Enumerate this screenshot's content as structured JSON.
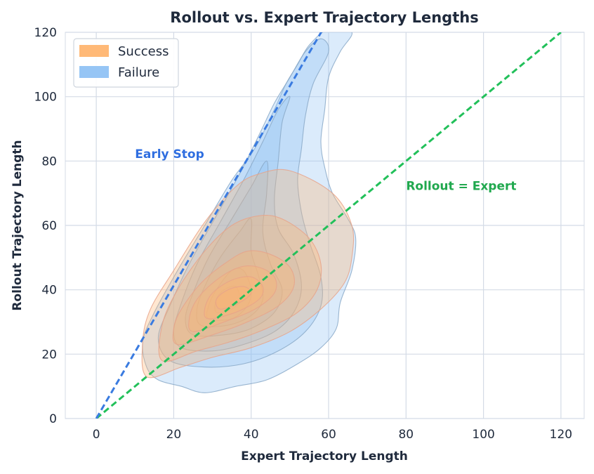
{
  "chart_data": {
    "type": "kde-contour",
    "title": "Rollout vs. Expert Trajectory Lengths",
    "xlabel": "Expert Trajectory Length",
    "ylabel": "Rollout Trajectory Length",
    "xlim": [
      -8,
      126
    ],
    "ylim": [
      0,
      120
    ],
    "xticks": [
      0,
      20,
      40,
      60,
      80,
      100,
      120
    ],
    "yticks": [
      0,
      20,
      40,
      60,
      80,
      100,
      120
    ],
    "grid": true,
    "legend_position": "top-left",
    "series": [
      {
        "name": "Success",
        "color": "#ffb570",
        "line_color": "#e8a38a",
        "center": [
          36,
          36
        ],
        "contours": [
          [
            [
              13,
              13
            ],
            [
              22,
              16
            ],
            [
              30,
              19
            ],
            [
              40,
              22
            ],
            [
              50,
              27
            ],
            [
              58,
              34
            ],
            [
              64,
              42
            ],
            [
              66,
              50
            ],
            [
              66,
              60
            ],
            [
              61,
              70
            ],
            [
              50,
              77
            ],
            [
              42,
              76
            ],
            [
              36,
              72
            ],
            [
              28,
              61
            ],
            [
              20,
              46
            ],
            [
              14,
              34
            ],
            [
              12,
              24
            ]
          ],
          [
            [
              17,
              18
            ],
            [
              26,
              21
            ],
            [
              35,
              24
            ],
            [
              44,
              28
            ],
            [
              52,
              33
            ],
            [
              57,
              40
            ],
            [
              58,
              48
            ],
            [
              55,
              56
            ],
            [
              48,
              62
            ],
            [
              42,
              63
            ],
            [
              35,
              60
            ],
            [
              28,
              52
            ],
            [
              21,
              40
            ],
            [
              17,
              29
            ]
          ],
          [
            [
              21,
              23
            ],
            [
              30,
              26
            ],
            [
              39,
              30
            ],
            [
              47,
              35
            ],
            [
              51,
              41
            ],
            [
              50,
              47
            ],
            [
              45,
              51
            ],
            [
              39,
              52
            ],
            [
              33,
              48
            ],
            [
              27,
              42
            ],
            [
              22,
              34
            ],
            [
              20,
              28
            ]
          ],
          [
            [
              25,
              27
            ],
            [
              33,
              30
            ],
            [
              41,
              34
            ],
            [
              46,
              39
            ],
            [
              46,
              44
            ],
            [
              42,
              47
            ],
            [
              37,
              47
            ],
            [
              31,
              43
            ],
            [
              26,
              37
            ],
            [
              24,
              31
            ]
          ],
          [
            [
              29,
              31
            ],
            [
              36,
              33
            ],
            [
              42,
              37
            ],
            [
              43,
              41
            ],
            [
              40,
              44
            ],
            [
              35,
              43
            ],
            [
              30,
              39
            ],
            [
              28,
              34
            ]
          ],
          [
            [
              32,
              34
            ],
            [
              37,
              36
            ],
            [
              40,
              39
            ],
            [
              38,
              41
            ],
            [
              34,
              40
            ],
            [
              31,
              37
            ]
          ]
        ]
      },
      {
        "name": "Failure",
        "color": "#90c2f4",
        "line_color": "#8aa9c8",
        "center": [
          35,
          37
        ],
        "contours": [
          [
            [
              16,
              12
            ],
            [
              22,
              10
            ],
            [
              28,
              8
            ],
            [
              36,
              10
            ],
            [
              44,
              12
            ],
            [
              52,
              17
            ],
            [
              58,
              22
            ],
            [
              62,
              28
            ],
            [
              63,
              36
            ],
            [
              66,
              46
            ],
            [
              67,
              56
            ],
            [
              65,
              62
            ],
            [
              61,
              70
            ],
            [
              59,
              78
            ],
            [
              58,
              86
            ],
            [
              59,
              96
            ],
            [
              60,
              106
            ],
            [
              63,
              114
            ],
            [
              66,
              120
            ],
            [
              60,
              121
            ],
            [
              55,
              116
            ],
            [
              52,
              110
            ],
            [
              49,
              104
            ],
            [
              46,
              96
            ],
            [
              41,
              84
            ],
            [
              35,
              74
            ],
            [
              28,
              60
            ],
            [
              21,
              46
            ],
            [
              15,
              33
            ],
            [
              12,
              24
            ],
            [
              13,
              16
            ]
          ],
          [
            [
              19,
              18
            ],
            [
              28,
              16
            ],
            [
              38,
              17
            ],
            [
              47,
              21
            ],
            [
              54,
              27
            ],
            [
              58,
              35
            ],
            [
              58,
              44
            ],
            [
              55,
              55
            ],
            [
              53,
              64
            ],
            [
              52,
              74
            ],
            [
              53,
              84
            ],
            [
              54,
              94
            ],
            [
              56,
              104
            ],
            [
              60,
              114
            ],
            [
              58,
              118
            ],
            [
              54,
              114
            ],
            [
              50,
              106
            ],
            [
              46,
              98
            ],
            [
              42,
              88
            ],
            [
              37,
              76
            ],
            [
              31,
              63
            ],
            [
              24,
              48
            ],
            [
              19,
              35
            ],
            [
              16,
              25
            ]
          ],
          [
            [
              22,
              22
            ],
            [
              30,
              21
            ],
            [
              38,
              23
            ],
            [
              46,
              27
            ],
            [
              51,
              33
            ],
            [
              53,
              41
            ],
            [
              51,
              51
            ],
            [
              47,
              59
            ],
            [
              46,
              68
            ],
            [
              47,
              80
            ],
            [
              48,
              92
            ],
            [
              50,
              100
            ],
            [
              47,
              96
            ],
            [
              43,
              86
            ],
            [
              38,
              74
            ],
            [
              32,
              61
            ],
            [
              26,
              48
            ],
            [
              22,
              36
            ],
            [
              20,
              27
            ]
          ],
          [
            [
              25,
              26
            ],
            [
              33,
              26
            ],
            [
              40,
              28
            ],
            [
              46,
              33
            ],
            [
              48,
              40
            ],
            [
              45,
              48
            ],
            [
              43,
              58
            ],
            [
              44,
              70
            ],
            [
              44,
              80
            ],
            [
              40,
              72
            ],
            [
              35,
              62
            ],
            [
              29,
              50
            ],
            [
              25,
              39
            ],
            [
              23,
              31
            ]
          ],
          [
            [
              27,
              29
            ],
            [
              34,
              29
            ],
            [
              40,
              32
            ],
            [
              43,
              37
            ],
            [
              42,
              44
            ],
            [
              40,
              52
            ],
            [
              40,
              62
            ],
            [
              37,
              58
            ],
            [
              32,
              50
            ],
            [
              28,
              41
            ],
            [
              26,
              34
            ]
          ],
          [
            [
              29,
              31
            ],
            [
              35,
              31
            ],
            [
              39,
              35
            ],
            [
              40,
              40
            ],
            [
              38,
              46
            ],
            [
              35,
              46
            ],
            [
              31,
              40
            ],
            [
              29,
              35
            ]
          ],
          [
            [
              31,
              33
            ],
            [
              35,
              34
            ],
            [
              37,
              37
            ],
            [
              36,
              41
            ],
            [
              33,
              40
            ],
            [
              31,
              37
            ]
          ]
        ]
      }
    ],
    "reference_lines": [
      {
        "label": "Rollout = Expert",
        "color": "#22c05a",
        "from": [
          0,
          0
        ],
        "to": [
          120,
          120
        ],
        "style": "dashed"
      },
      {
        "label": "Early Stop",
        "color": "#3a7be0",
        "from": [
          0,
          0
        ],
        "to": [
          60,
          124
        ],
        "style": "dashed"
      }
    ],
    "annotations": [
      {
        "text": "Early Stop",
        "color": "#2f6ee0",
        "x": 10,
        "y": 81
      },
      {
        "text": "Rollout = Expert",
        "color": "#20a84e",
        "x": 80,
        "y": 71
      }
    ]
  }
}
